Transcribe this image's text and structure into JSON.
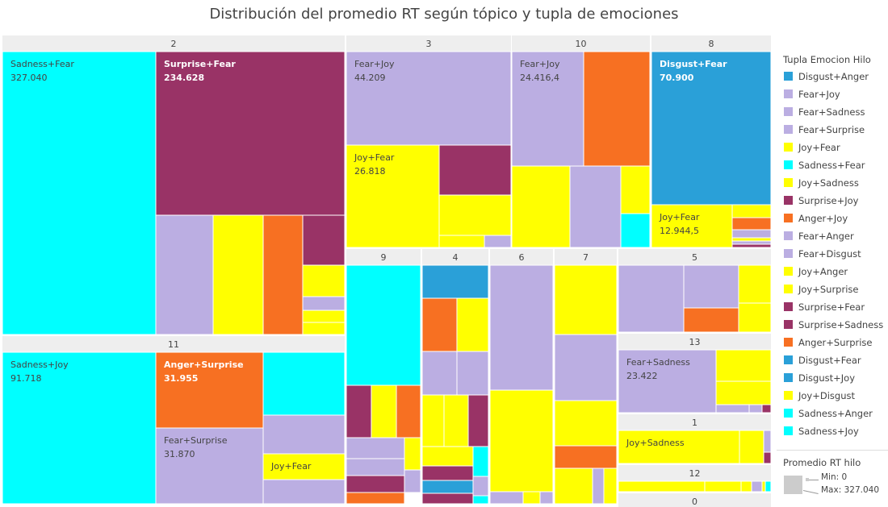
{
  "title": "Distribución del promedio RT según tópico y tupla de emociones",
  "legend": {
    "title": "Tupla Emocion Hilo",
    "items": [
      {
        "label": "Disgust+Anger",
        "color": "#2aa0d8"
      },
      {
        "label": "Fear+Joy",
        "color": "#bbaee2"
      },
      {
        "label": "Fear+Sadness",
        "color": "#bbaee2"
      },
      {
        "label": "Fear+Surprise",
        "color": "#bbaee2"
      },
      {
        "label": "Joy+Fear",
        "color": "#ffff00"
      },
      {
        "label": "Sadness+Fear",
        "color": "#00ffff"
      },
      {
        "label": "Joy+Sadness",
        "color": "#ffff00"
      },
      {
        "label": "Surprise+Joy",
        "color": "#993366"
      },
      {
        "label": "Anger+Joy",
        "color": "#f77022"
      },
      {
        "label": "Fear+Anger",
        "color": "#bbaee2"
      },
      {
        "label": "Fear+Disgust",
        "color": "#bbaee2"
      },
      {
        "label": "Joy+Anger",
        "color": "#ffff00"
      },
      {
        "label": "Joy+Surprise",
        "color": "#ffff00"
      },
      {
        "label": "Surprise+Fear",
        "color": "#993366"
      },
      {
        "label": "Surprise+Sadness",
        "color": "#993366"
      },
      {
        "label": "Anger+Surprise",
        "color": "#f77022"
      },
      {
        "label": "Disgust+Fear",
        "color": "#2aa0d8"
      },
      {
        "label": "Disgust+Joy",
        "color": "#2aa0d8"
      },
      {
        "label": "Joy+Disgust",
        "color": "#ffff00"
      },
      {
        "label": "Sadness+Anger",
        "color": "#00ffff"
      },
      {
        "label": "Sadness+Joy",
        "color": "#00ffff"
      }
    ]
  },
  "size_legend": {
    "title": "Promedio RT hilo",
    "min_text": "Min: 0",
    "max_text": "Max: 327.040"
  },
  "chart_data": {
    "type": "treemap",
    "colors": {
      "cyan": "#00ffff",
      "purple": "#993366",
      "lavender": "#bbaee2",
      "yellow": "#ffff00",
      "orange": "#f77022",
      "blue": "#2aa0d8",
      "header": "#eeeeee"
    },
    "groups": [
      {
        "topic": "2",
        "tiles": [
          {
            "emotion": "Sadness+Fear",
            "value": "327.040",
            "c": "cyan"
          },
          {
            "emotion": "Surprise+Fear",
            "value": "234.628",
            "c": "purple"
          },
          {
            "c": "lavender"
          },
          {
            "c": "yellow"
          },
          {
            "c": "orange"
          },
          {
            "c": "purple"
          },
          {
            "c": "yellow"
          },
          {
            "c": "lavender"
          },
          {
            "c": "yellow"
          },
          {
            "c": "yellow"
          }
        ]
      },
      {
        "topic": "3",
        "tiles": [
          {
            "emotion": "Fear+Joy",
            "value": "44.209",
            "c": "lavender"
          },
          {
            "emotion": "Joy+Fear",
            "value": "26.818",
            "c": "yellow"
          },
          {
            "c": "purple"
          },
          {
            "c": "yellow"
          },
          {
            "c": "yellow"
          },
          {
            "c": "lavender"
          }
        ]
      },
      {
        "topic": "10",
        "tiles": [
          {
            "emotion": "Fear+Joy",
            "value": "24.416,4",
            "c": "lavender"
          },
          {
            "c": "orange"
          },
          {
            "c": "yellow"
          },
          {
            "c": "lavender"
          },
          {
            "c": "yellow"
          },
          {
            "c": "cyan"
          }
        ]
      },
      {
        "topic": "8",
        "tiles": [
          {
            "emotion": "Disgust+Fear",
            "value": "70.900",
            "c": "blue"
          },
          {
            "emotion": "Joy+Fear",
            "value": "12.944,5",
            "c": "yellow"
          },
          {
            "c": "yellow"
          },
          {
            "c": "orange"
          },
          {
            "c": "lavender"
          },
          {
            "c": "yellow"
          },
          {
            "c": "lavender"
          },
          {
            "c": "purple"
          }
        ]
      },
      {
        "topic": "11",
        "tiles": [
          {
            "emotion": "Sadness+Joy",
            "value": "91.718",
            "c": "cyan"
          },
          {
            "emotion": "Anger+Surprise",
            "value": "31.955",
            "c": "orange"
          },
          {
            "emotion": "Fear+Surprise",
            "value": "31.870",
            "c": "lavender"
          },
          {
            "c": "cyan"
          },
          {
            "c": "lavender"
          },
          {
            "emotion": "Joy+Fear",
            "c": "yellow"
          },
          {
            "c": "lavender"
          }
        ]
      },
      {
        "topic": "9",
        "tiles": [
          {
            "c": "cyan"
          },
          {
            "c": "purple"
          },
          {
            "c": "yellow"
          },
          {
            "c": "orange"
          },
          {
            "c": "lavender"
          },
          {
            "c": "lavender"
          },
          {
            "c": "purple"
          },
          {
            "c": "orange"
          },
          {
            "c": "yellow"
          },
          {
            "c": "lavender"
          }
        ]
      },
      {
        "topic": "4",
        "tiles": [
          {
            "c": "blue"
          },
          {
            "c": "orange"
          },
          {
            "c": "yellow"
          },
          {
            "c": "lavender"
          },
          {
            "c": "lavender"
          },
          {
            "c": "yellow"
          },
          {
            "c": "yellow"
          },
          {
            "c": "purple"
          },
          {
            "c": "yellow"
          },
          {
            "c": "cyan"
          },
          {
            "c": "purple"
          },
          {
            "c": "blue"
          },
          {
            "c": "lavender"
          },
          {
            "c": "purple"
          },
          {
            "c": "cyan"
          }
        ]
      },
      {
        "topic": "6",
        "tiles": [
          {
            "c": "lavender"
          },
          {
            "c": "yellow"
          },
          {
            "c": "lavender"
          },
          {
            "c": "yellow"
          },
          {
            "c": "lavender"
          }
        ]
      },
      {
        "topic": "7",
        "tiles": [
          {
            "c": "yellow"
          },
          {
            "c": "lavender"
          },
          {
            "c": "yellow"
          },
          {
            "c": "orange"
          },
          {
            "c": "yellow"
          },
          {
            "c": "lavender"
          },
          {
            "c": "yellow"
          }
        ]
      },
      {
        "topic": "5",
        "tiles": [
          {
            "c": "lavender"
          },
          {
            "c": "lavender"
          },
          {
            "c": "orange"
          },
          {
            "c": "yellow"
          },
          {
            "c": "yellow"
          }
        ]
      },
      {
        "topic": "13",
        "tiles": [
          {
            "emotion": "Fear+Sadness",
            "value": "23.422",
            "c": "lavender"
          },
          {
            "c": "yellow"
          },
          {
            "c": "yellow"
          },
          {
            "c": "lavender"
          },
          {
            "c": "lavender"
          },
          {
            "c": "purple"
          }
        ]
      },
      {
        "topic": "1",
        "tiles": [
          {
            "emotion": "Joy+Sadness",
            "c": "yellow"
          },
          {
            "c": "yellow"
          },
          {
            "c": "lavender"
          },
          {
            "c": "purple"
          }
        ]
      },
      {
        "topic": "12",
        "tiles": [
          {
            "c": "yellow"
          },
          {
            "c": "yellow"
          },
          {
            "c": "yellow"
          },
          {
            "c": "lavender"
          },
          {
            "c": "yellow"
          },
          {
            "c": "cyan"
          }
        ]
      },
      {
        "topic": "0",
        "tiles": []
      }
    ]
  }
}
